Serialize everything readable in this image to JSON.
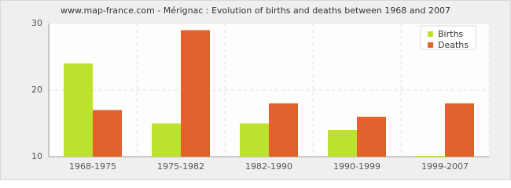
{
  "chart_data": {
    "type": "bar",
    "title": "www.map-france.com - Mérignac : Evolution of births and deaths between 1968 and 2007",
    "categories": [
      "1968-1975",
      "1975-1982",
      "1982-1990",
      "1990-1999",
      "1999-2007"
    ],
    "series": [
      {
        "name": "Births",
        "color": "#bde22e",
        "values": [
          24,
          15,
          15,
          14,
          10
        ]
      },
      {
        "name": "Deaths",
        "color": "#e0632e",
        "values": [
          17,
          29,
          18,
          16,
          18
        ]
      }
    ],
    "ylim": [
      10,
      30
    ],
    "yticks": [
      10,
      20,
      30
    ],
    "grid": true,
    "legend": "top-right"
  }
}
